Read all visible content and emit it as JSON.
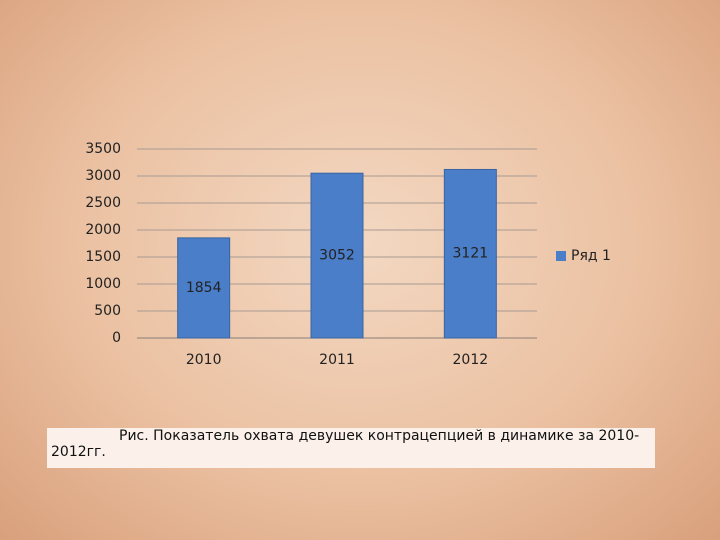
{
  "chart_data": {
    "type": "bar",
    "categories": [
      "2010",
      "2011",
      "2012"
    ],
    "series": [
      {
        "name": "Ряд 1",
        "color": "#4a7ec8",
        "values": [
          1854,
          3052,
          3121
        ]
      }
    ],
    "ylim": [
      0,
      3500
    ],
    "yticks": [
      0,
      500,
      1000,
      1500,
      2000,
      2500,
      3000,
      3500
    ],
    "grid": true,
    "legend": "right",
    "data_labels": true
  },
  "caption": "Рис. Показатель охвата девушек контрацепцией в динамике за 2010-2012гг."
}
